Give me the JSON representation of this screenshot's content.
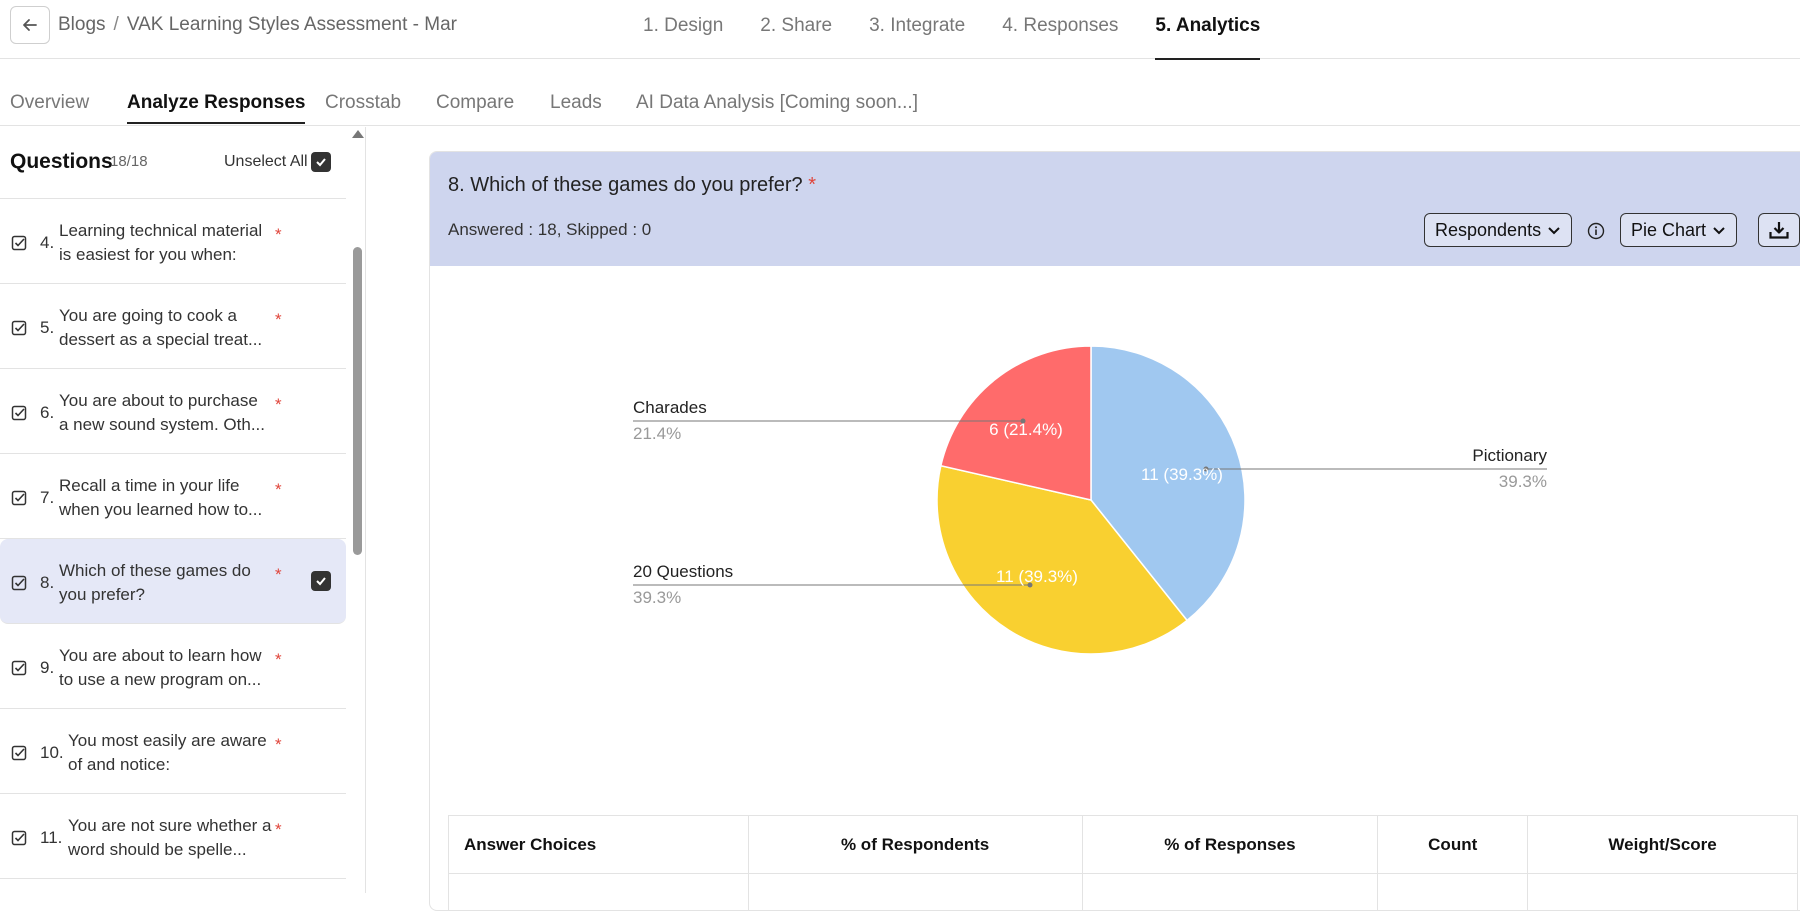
{
  "breadcrumb": {
    "parent": "Blogs",
    "separator": "/",
    "current": "VAK Learning Styles Assessment - Mar"
  },
  "steps": [
    {
      "label": "1. Design",
      "active": false
    },
    {
      "label": "2. Share",
      "active": false
    },
    {
      "label": "3. Integrate",
      "active": false
    },
    {
      "label": "4. Responses",
      "active": false
    },
    {
      "label": "5. Analytics",
      "active": true
    }
  ],
  "subtabs": [
    {
      "label": "Overview",
      "active": false
    },
    {
      "label": "Analyze Responses",
      "active": true
    },
    {
      "label": "Crosstab",
      "active": false
    },
    {
      "label": "Compare",
      "active": false
    },
    {
      "label": "Leads",
      "active": false
    },
    {
      "label": "AI Data Analysis [Coming soon...]",
      "active": false
    }
  ],
  "sidebar": {
    "title": "Questions",
    "count": "18/18",
    "unselect_label": "Unselect All",
    "questions": [
      {
        "num": "4.",
        "text": "Learning technical material is easiest for you when:",
        "required": "*"
      },
      {
        "num": "5.",
        "text": "You are going to cook a dessert as a special treat...",
        "required": "*"
      },
      {
        "num": "6.",
        "text": "You are about to purchase a new sound system. Oth...",
        "required": "*"
      },
      {
        "num": "7.",
        "text": "Recall a time in your life when you learned how to...",
        "required": "*"
      },
      {
        "num": "8.",
        "text": "Which of these games do you prefer?",
        "required": "*",
        "selected": true
      },
      {
        "num": "9.",
        "text": "You are about to learn how to use a new program on...",
        "required": "*"
      },
      {
        "num": "10.",
        "text": "You most easily are aware of and notice:",
        "required": "*"
      },
      {
        "num": "11.",
        "text": "You are not sure whether a word should be spelle...",
        "required": "*"
      }
    ]
  },
  "question": {
    "title": "8. Which of these games do you prefer?",
    "required": "*",
    "answered_label": "Answered :",
    "answered_value": "18,",
    "skipped_label": "Skipped :",
    "skipped_value": "0",
    "respondents_dropdown": "Respondents",
    "chart_type_dropdown": "Pie Chart"
  },
  "chart_data": {
    "type": "pie",
    "slices": [
      {
        "label": "Pictionary",
        "value": 11,
        "percent": "39.3%",
        "data_label": "11 (39.3%)",
        "color": "#a0c8f0"
      },
      {
        "label": "20 Questions",
        "value": 11,
        "percent": "39.3%",
        "data_label": "11 (39.3%)",
        "color": "#f9d030"
      },
      {
        "label": "Charades",
        "value": 6,
        "percent": "21.4%",
        "data_label": "6 (21.4%)",
        "color": "#ff6b6b"
      }
    ]
  },
  "table": {
    "headers": [
      "Answer Choices",
      "% of Respondents",
      "% of Responses",
      "Count",
      "Weight/Score"
    ]
  },
  "colors": {
    "accent_bg": "#ced5ee",
    "required": "#e0453b"
  }
}
